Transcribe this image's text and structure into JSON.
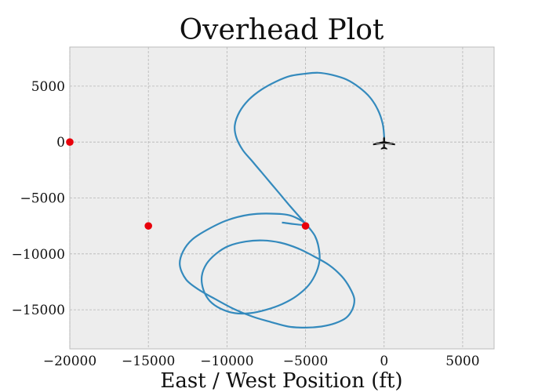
{
  "chart_data": {
    "type": "line",
    "title": "Overhead Plot",
    "xlabel": "East / West Position (ft)",
    "ylabel": "",
    "xlim": [
      -20000,
      7000
    ],
    "ylim": [
      -18500,
      8500
    ],
    "xticks": [
      -20000,
      -15000,
      -10000,
      -5000,
      0,
      5000
    ],
    "yticks": [
      5000,
      0,
      -5000,
      -10000,
      -15000
    ],
    "xtick_labels": [
      "−20000",
      "−15000",
      "−10000",
      "−5000",
      "0",
      "5000"
    ],
    "ytick_labels": [
      "5000",
      "0",
      "−5000",
      "−10000",
      "−15000"
    ],
    "grid": true,
    "series": [
      {
        "color": "#348abd",
        "x": [
          0,
          0,
          -100,
          -400,
          -900,
          -1600,
          -2400,
          -3300,
          -4200,
          -5100,
          -6000,
          -6900,
          -7800,
          -8600,
          -9200,
          -9500,
          -9400,
          -9000,
          -8400,
          -7800,
          -7200,
          -6600,
          -6000,
          -5500,
          -5000,
          -4700,
          -4400,
          -4200,
          -4100,
          -4300,
          -4800,
          -5600,
          -6500,
          -7500,
          -8500,
          -9500,
          -10400,
          -11100,
          -11500,
          -11600,
          -11300,
          -10700,
          -9900,
          -8800,
          -7700,
          -6600,
          -5500,
          -4500,
          -3500,
          -2700,
          -2200,
          -1900,
          -2000,
          -2400,
          -3100,
          -4000,
          -5000,
          -6100,
          -7200,
          -8400,
          -9600,
          -10800,
          -11800,
          -12600,
          -13000,
          -12800,
          -12200,
          -11200,
          -10000,
          -8600,
          -7200,
          -5900,
          -5000,
          -6500
        ],
        "y": [
          0,
          600,
          1700,
          2900,
          4000,
          4900,
          5600,
          6000,
          6200,
          6100,
          5900,
          5400,
          4700,
          3800,
          2700,
          1500,
          400,
          -700,
          -1700,
          -2700,
          -3700,
          -4700,
          -5700,
          -6500,
          -7300,
          -7800,
          -8400,
          -9200,
          -10400,
          -11600,
          -12800,
          -13800,
          -14500,
          -15000,
          -15300,
          -15300,
          -14900,
          -14200,
          -13200,
          -12000,
          -10900,
          -10000,
          -9300,
          -8900,
          -8800,
          -9000,
          -9500,
          -10200,
          -11000,
          -12000,
          -13000,
          -14000,
          -14900,
          -15700,
          -16200,
          -16500,
          -16600,
          -16500,
          -16100,
          -15600,
          -14900,
          -14000,
          -13200,
          -12300,
          -11000,
          -9800,
          -8700,
          -7800,
          -7000,
          -6500,
          -6400,
          -6600,
          -7400,
          -7200
        ]
      }
    ],
    "markers": {
      "color": "#e8000b",
      "x": [
        -20000,
        -15000,
        -5000
      ],
      "y": [
        0,
        -7500,
        -7500
      ]
    },
    "aircraft": {
      "x": 0,
      "y": 0,
      "icon": "airplane-icon"
    }
  }
}
